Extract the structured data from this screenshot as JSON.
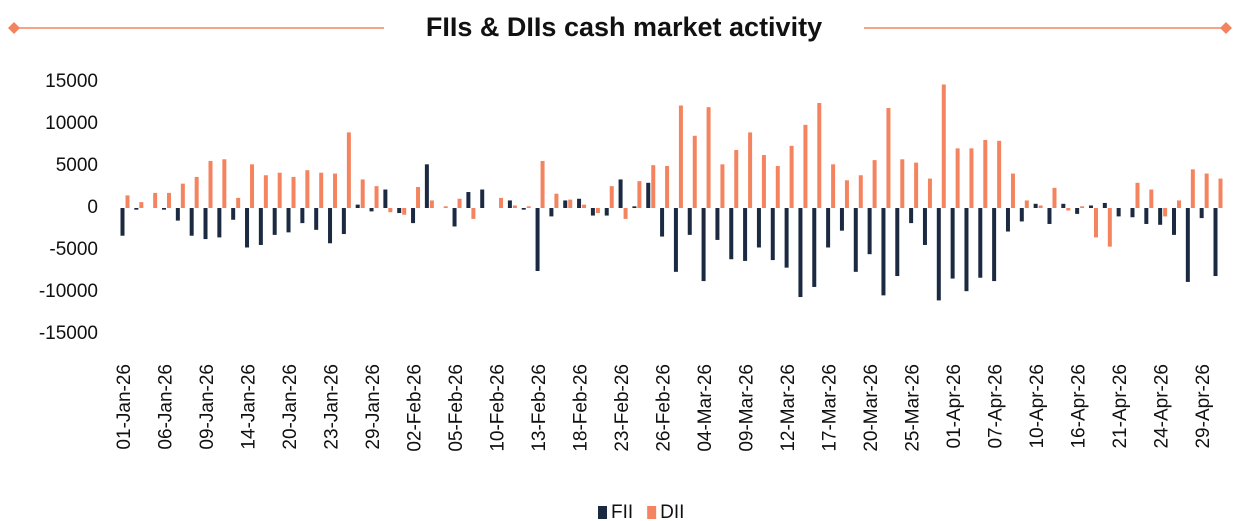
{
  "chart_data": {
    "type": "bar",
    "title": "FIIs & DIIs cash market activity",
    "categories": [
      "01-Jan-26",
      null,
      null,
      "06-Jan-26",
      null,
      null,
      "09-Jan-26",
      null,
      null,
      "14-Jan-26",
      null,
      null,
      "20-Jan-26",
      null,
      null,
      "23-Jan-26",
      null,
      null,
      "29-Jan-26",
      null,
      null,
      "02-Feb-26",
      null,
      null,
      "05-Feb-26",
      null,
      null,
      "10-Feb-26",
      null,
      null,
      "13-Feb-26",
      null,
      null,
      "18-Feb-26",
      null,
      null,
      "23-Feb-26",
      null,
      null,
      "26-Feb-26",
      null,
      null,
      "04-Mar-26",
      null,
      null,
      "09-Mar-26",
      null,
      null,
      "12-Mar-26",
      null,
      null,
      "17-Mar-26",
      null,
      null,
      "20-Mar-26",
      null,
      null,
      "25-Mar-26",
      null,
      null,
      "01-Apr-26",
      null,
      null,
      "07-Apr-26",
      null,
      null,
      "10-Apr-26",
      null,
      null,
      "16-Apr-26",
      null,
      null,
      "21-Apr-26",
      null,
      null,
      "24-Apr-26",
      null,
      null,
      "29-Apr-26",
      null
    ],
    "series": [
      {
        "name": "FII",
        "color": "#1b2a41",
        "values": [
          -3300,
          -200,
          0,
          -200,
          -1500,
          -3300,
          -3700,
          -3500,
          -1400,
          -4700,
          -4400,
          -3200,
          -2900,
          -1800,
          -2600,
          -4200,
          -3100,
          400,
          -400,
          2200,
          -600,
          -1800,
          5200,
          0,
          -2200,
          1900,
          2200,
          0,
          900,
          -200,
          -7500,
          -1000,
          900,
          1100,
          -900,
          -900,
          3400,
          200,
          3000,
          -3400,
          -7600,
          -3200,
          -8700,
          -3800,
          -6100,
          -6300,
          -4700,
          -6200,
          -7100,
          -10600,
          -9400,
          -4700,
          -2700,
          -7600,
          -5500,
          -10400,
          -8100,
          -1800,
          -4400,
          -11000,
          -8400,
          -9900,
          -8300,
          -8700,
          -2800,
          -1600,
          500,
          -1900,
          500,
          -700,
          300,
          600,
          -1000,
          -1100,
          -1900,
          -2000,
          -3200,
          -8800,
          -1200,
          -8100
        ]
      },
      {
        "name": "DII",
        "color": "#f4845f",
        "values": [
          1500,
          700,
          1800,
          1800,
          2900,
          3700,
          5600,
          5800,
          1200,
          5200,
          3900,
          4200,
          3700,
          4500,
          4200,
          4100,
          9000,
          3400,
          2600,
          -500,
          -800,
          2500,
          900,
          200,
          1100,
          -1300,
          0,
          1200,
          300,
          200,
          5600,
          1700,
          1000,
          400,
          -600,
          2600,
          -1300,
          3200,
          5100,
          5000,
          12200,
          8600,
          12000,
          5200,
          6900,
          9000,
          6300,
          5000,
          7400,
          9900,
          12500,
          5200,
          3300,
          3900,
          5700,
          11900,
          5800,
          5400,
          3500,
          14700,
          7100,
          7100,
          8100,
          8000,
          4100,
          900,
          300,
          2400,
          -300,
          200,
          -3500,
          -4600,
          0,
          3000,
          2200,
          -1000,
          900,
          4600,
          4100,
          3500
        ]
      }
    ],
    "ylim": [
      -15000,
      15000
    ],
    "yticks": [
      -15000,
      -10000,
      -5000,
      0,
      5000,
      10000,
      15000
    ],
    "grid": false,
    "legend": "bottom"
  }
}
